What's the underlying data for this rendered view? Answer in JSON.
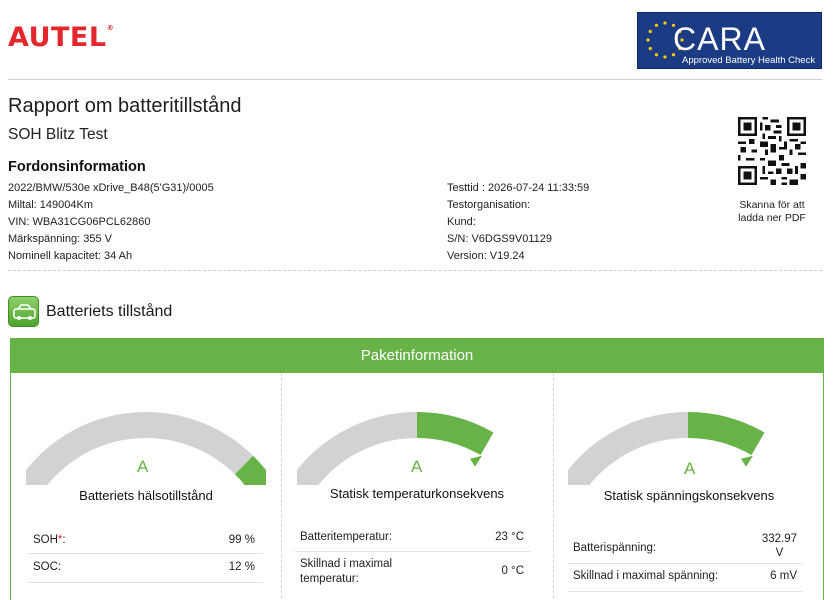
{
  "brand": {
    "name": "AUTEL",
    "mark": "®"
  },
  "cara": {
    "name": "CARA",
    "subtitle": "Approved Battery Health Check"
  },
  "report": {
    "title": "Rapport om batteritillstånd",
    "subtitle": "SOH Blitz Test",
    "vehicle_info_heading": "Fordonsinformation"
  },
  "vehicle_left": [
    "2022/BMW/530e xDrive_B48(5'G31)/0005",
    "Miltal: 149004Km",
    "VIN: WBA31CG06PCL62860",
    "Märkspänning: 355 V",
    "Nominell kapacitet: 34 Ah"
  ],
  "vehicle_right": [
    "Testtid : 2026-07-24 11:33:59",
    "Testorganisation:",
    "Kund:",
    "S/N: V6DGS9V01129",
    "Version: V19.24"
  ],
  "qr": {
    "caption_line1": "Skanna för att",
    "caption_line2": "ladda ner PDF"
  },
  "battery_section": {
    "title": "Batteriets tillstånd"
  },
  "panel": {
    "header": "Paketinformation"
  },
  "gauges": [
    {
      "grade": "A",
      "title": "Batteriets hälsotillstånd",
      "level": 0.99
    },
    {
      "grade": "A",
      "title": "Statisk temperaturkonsekvens",
      "level": 0.75
    },
    {
      "grade": "A",
      "title": "Statisk spänningskonsekvens",
      "level": 0.75
    }
  ],
  "soh": {
    "label_soh": "SOH",
    "soh_mark": "*",
    "soh_colon": ":",
    "soh_value": "99 %",
    "label_soc": "SOC:",
    "soc_value": "12 %"
  },
  "temperature": {
    "label_temp": "Batteritemperatur:",
    "temp_value": "23 °C",
    "label_diff_1": "Skillnad i maximal",
    "label_diff_2": "temperatur:",
    "diff_value": "0 °C"
  },
  "voltage": {
    "label_voltage": "Batterispänning:",
    "voltage_value_1": "332.97",
    "voltage_value_2": "V",
    "label_diff": "Skillnad i maximal spänning:",
    "diff_value": "6 mV"
  },
  "colors": {
    "accent_green": "#67b348",
    "gauge_gray": "#d2d2d2",
    "brand_red": "#e3272d",
    "cara_blue": "#1b3c84"
  }
}
